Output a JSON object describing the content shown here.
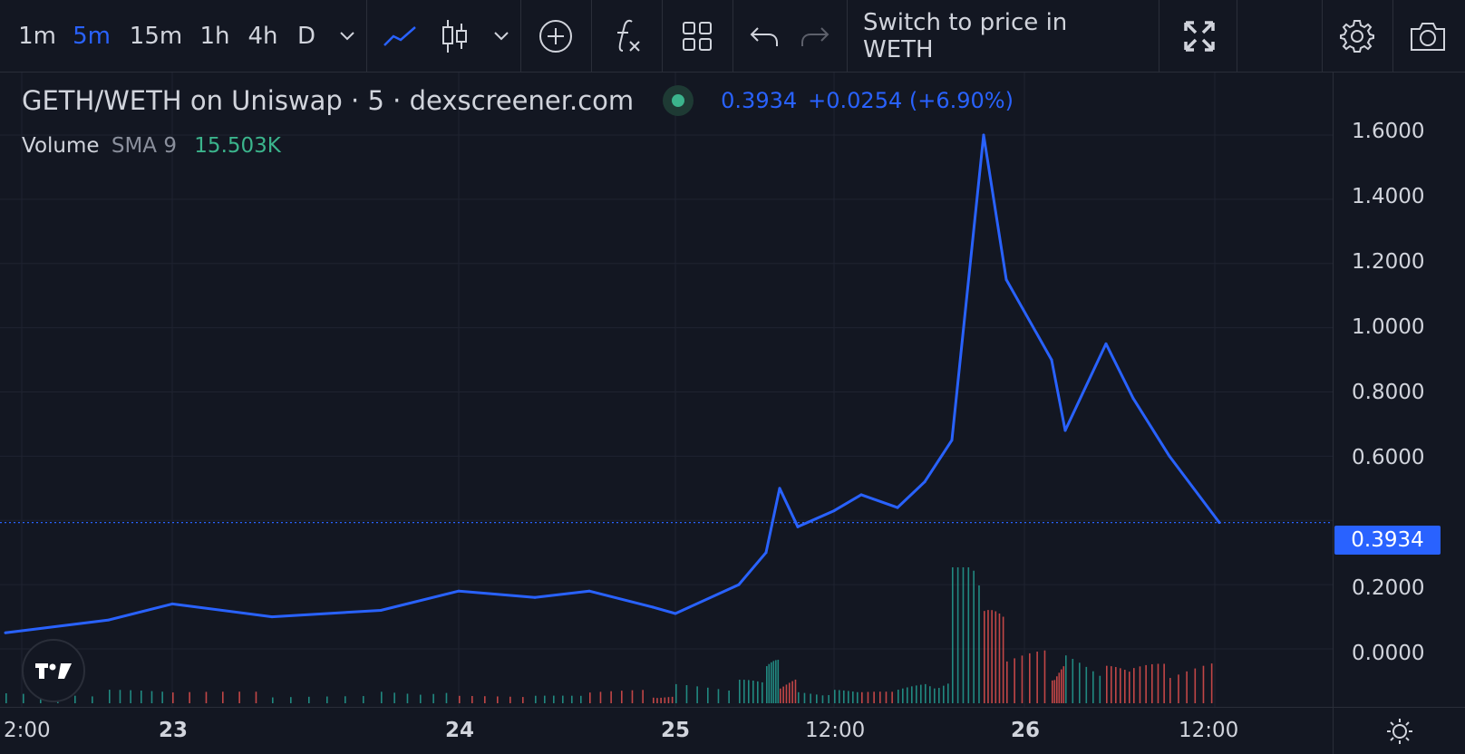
{
  "toolbar": {
    "intervals": [
      "1m",
      "5m",
      "15m",
      "1h",
      "4h",
      "D"
    ],
    "active_interval": "5m",
    "switch_label": "Switch to price in WETH"
  },
  "legend": {
    "symbol": "GETH/WETH on Uniswap · 5 · dexscreener.com",
    "last": "0.3934",
    "change": "+0.0254 (+6.90%)",
    "volume_label": "Volume",
    "sma_label": "SMA 9",
    "volume_value": "15.503K"
  },
  "price_axis": {
    "ticks": [
      "1.6000",
      "1.4000",
      "1.2000",
      "1.0000",
      "0.8000",
      "0.6000",
      "0.2000",
      "0.0000"
    ],
    "last_badge": "0.3934"
  },
  "time_axis": {
    "labels": [
      "2:00",
      "23",
      "24",
      "25",
      "12:00",
      "26",
      "12:00"
    ]
  },
  "colors": {
    "background": "#131722",
    "line": "#2962ff",
    "up": "#26a69a",
    "down": "#ef5350"
  },
  "chart_data": {
    "type": "line",
    "ylim": [
      -0.1,
      1.6
    ],
    "x": [
      "22 20:00",
      "23 00:00",
      "23 06:00",
      "23 12:00",
      "23 18:00",
      "24 00:00",
      "24 06:00",
      "24 12:00",
      "24 18:00",
      "25 00:00",
      "25 04:00",
      "25 06:00",
      "25 08:00",
      "25 10:00",
      "25 12:00",
      "25 14:00",
      "25 16:00",
      "25 18:00",
      "25 20:00",
      "25 22:00",
      "26 00:00",
      "26 02:00",
      "26 04:00",
      "26 06:00",
      "26 08:00",
      "26 10:00",
      "26 12:00"
    ],
    "values": [
      0.05,
      0.09,
      0.14,
      0.1,
      0.12,
      0.18,
      0.16,
      0.18,
      0.13,
      0.11,
      0.2,
      0.3,
      0.5,
      0.38,
      0.43,
      0.48,
      0.44,
      0.52,
      0.65,
      1.6,
      1.15,
      0.9,
      0.68,
      0.95,
      0.78,
      0.6,
      0.3934
    ]
  }
}
